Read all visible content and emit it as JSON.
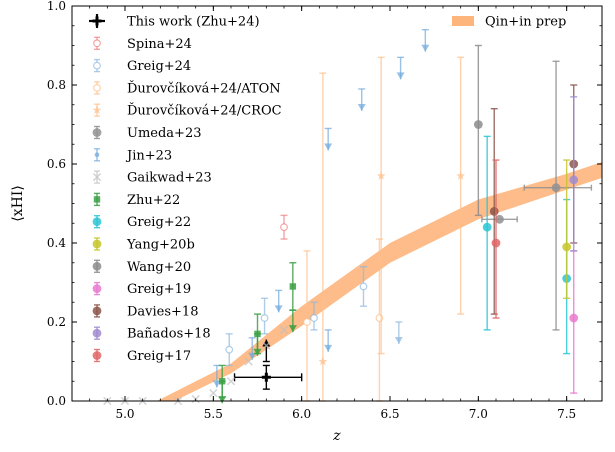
{
  "chart_data": {
    "type": "scatter",
    "xlabel": "z",
    "ylabel": "⟨xHI⟩",
    "xlim": [
      4.7,
      7.7
    ],
    "ylim": [
      0.0,
      1.0
    ],
    "x_ticks": [
      "5.0",
      "5.5",
      "6.0",
      "6.5",
      "7.0",
      "7.5"
    ],
    "y_ticks": [
      "0.0",
      "0.2",
      "0.4",
      "0.6",
      "0.8",
      "1.0"
    ],
    "grid": false,
    "legend": [
      "upper-left",
      "upper-right"
    ],
    "band": {
      "name": "Qin+in prep",
      "color": "#fdb57c",
      "lower": [
        [
          5.28,
          0.0
        ],
        [
          5.6,
          0.07
        ],
        [
          6.0,
          0.19
        ],
        [
          6.5,
          0.35
        ],
        [
          7.0,
          0.46
        ],
        [
          7.5,
          0.535
        ],
        [
          7.7,
          0.565
        ]
      ],
      "upper": [
        [
          5.18,
          0.0
        ],
        [
          5.6,
          0.095
        ],
        [
          6.0,
          0.24
        ],
        [
          6.5,
          0.4
        ],
        [
          7.0,
          0.51
        ],
        [
          7.5,
          0.575
        ],
        [
          7.7,
          0.605
        ]
      ]
    },
    "series": [
      {
        "name": "This work (Zhu+24)",
        "color": "#000000",
        "marker": "plus",
        "points": [
          {
            "x": 5.8,
            "y": 0.06,
            "yerr": [
              0.03,
              0.03
            ],
            "xerr": [
              0.18,
              0.2
            ]
          }
        ],
        "limits": [
          {
            "x": 5.8,
            "y": 0.1,
            "dir": "up"
          }
        ]
      },
      {
        "name": "Spina+24",
        "color": "#f08080",
        "marker": "circle-open",
        "points": [
          {
            "x": 5.9,
            "y": 0.44,
            "yerr": [
              0.03,
              0.03
            ]
          }
        ]
      },
      {
        "name": "Greig+24",
        "color": "#8fb8de",
        "marker": "circle-open",
        "points": [
          {
            "x": 5.59,
            "y": 0.13,
            "yerr": [
              0.04,
              0.04
            ]
          },
          {
            "x": 5.79,
            "y": 0.21,
            "yerr": [
              0.04,
              0.05
            ]
          },
          {
            "x": 6.07,
            "y": 0.21,
            "yerr": [
              0.03,
              0.04
            ]
          },
          {
            "x": 6.35,
            "y": 0.29,
            "yerr": [
              0.05,
              0.05
            ]
          }
        ],
        "limits": [
          {
            "x": 6.55,
            "y": 0.2,
            "dir": "down"
          }
        ]
      },
      {
        "name": "Ďurovčíková+24/ATON",
        "color": "#fdbf8a",
        "marker": "circle-open",
        "points": [
          {
            "x": 6.03,
            "y": 0.2,
            "yerr": [
              0.2,
              0.18
            ]
          },
          {
            "x": 6.44,
            "y": 0.21,
            "yerr": [
              0.21,
              0.2
            ]
          }
        ]
      },
      {
        "name": "Ďurovčíková+24/CROC",
        "color": "#fdbf8a",
        "marker": "star",
        "points": [
          {
            "x": 6.12,
            "y": 0.1,
            "yerr": [
              0.1,
              0.73
            ]
          },
          {
            "x": 6.45,
            "y": 0.57,
            "yerr": [
              0.45,
              0.3
            ]
          },
          {
            "x": 6.9,
            "y": 0.57,
            "yerr": [
              0.35,
              0.3
            ]
          }
        ]
      },
      {
        "name": "Umeda+23",
        "color": "#909090",
        "marker": "circle",
        "points": [
          {
            "x": 7.12,
            "y": 0.46,
            "xerr": [
              0.1,
              0.1
            ],
            "yerr": [
              0.0,
              0.0
            ]
          },
          {
            "x": 7.44,
            "y": 0.54,
            "xerr": [
              0.18,
              0.2
            ],
            "yerr": [
              0.36,
              0.32
            ]
          }
        ]
      },
      {
        "name": "Jin+23",
        "color": "#6fa8dc",
        "marker": "dot",
        "points": [],
        "limits": [
          {
            "x": 5.52,
            "y": 0.09,
            "dir": "down"
          },
          {
            "x": 5.72,
            "y": 0.16,
            "dir": "down"
          },
          {
            "x": 5.87,
            "y": 0.28,
            "dir": "down"
          },
          {
            "x": 6.15,
            "y": 0.18,
            "dir": "down"
          },
          {
            "x": 6.15,
            "y": 0.69,
            "dir": "down"
          },
          {
            "x": 6.34,
            "y": 0.79,
            "dir": "down"
          },
          {
            "x": 6.56,
            "y": 0.87,
            "dir": "down"
          },
          {
            "x": 6.7,
            "y": 0.94,
            "dir": "down"
          }
        ]
      },
      {
        "name": "Gaikwad+23",
        "color": "#c0c0c0",
        "marker": "x",
        "points": [
          {
            "x": 4.9,
            "y": 0.0
          },
          {
            "x": 5.0,
            "y": 0.0
          },
          {
            "x": 5.1,
            "y": 0.0
          },
          {
            "x": 5.3,
            "y": 0.0
          },
          {
            "x": 5.4,
            "y": 0.005
          },
          {
            "x": 5.5,
            "y": 0.02
          },
          {
            "x": 5.6,
            "y": 0.05
          },
          {
            "x": 5.7,
            "y": 0.1
          },
          {
            "x": 5.8,
            "y": 0.14
          },
          {
            "x": 5.9,
            "y": 0.18
          }
        ]
      },
      {
        "name": "Zhu+22",
        "color": "#3aa043",
        "marker": "square",
        "points": [
          {
            "x": 5.55,
            "y": 0.05,
            "yerr": [
              0.04,
              0.04
            ]
          },
          {
            "x": 5.75,
            "y": 0.17,
            "yerr": [
              0.05,
              0.05
            ]
          },
          {
            "x": 5.95,
            "y": 0.29,
            "yerr": [
              0.06,
              0.06
            ]
          }
        ],
        "limits": [
          {
            "x": 5.55,
            "y": 0.05,
            "dir": "down"
          },
          {
            "x": 5.75,
            "y": 0.17,
            "dir": "down"
          },
          {
            "x": 5.95,
            "y": 0.23,
            "dir": "down"
          }
        ]
      },
      {
        "name": "Greig+22",
        "color": "#2bc4d4",
        "marker": "circle",
        "points": [
          {
            "x": 7.05,
            "y": 0.44,
            "yerr": [
              0.26,
              0.23
            ]
          },
          {
            "x": 7.5,
            "y": 0.31,
            "yerr": [
              0.19,
              0.2
            ]
          }
        ]
      },
      {
        "name": "Yang+20b",
        "color": "#c5c52a",
        "marker": "circle",
        "points": [
          {
            "x": 7.5,
            "y": 0.39,
            "yerr": [
              0.13,
              0.22
            ]
          }
        ]
      },
      {
        "name": "Wang+20",
        "color": "#8c8c8c",
        "marker": "circle",
        "points": [
          {
            "x": 7.0,
            "y": 0.7,
            "yerr": [
              0.23,
              0.2
            ]
          }
        ]
      },
      {
        "name": "Greig+19",
        "color": "#e87ad0",
        "marker": "circle",
        "points": [
          {
            "x": 7.54,
            "y": 0.21,
            "yerr": [
              0.19,
              0.17
            ]
          }
        ]
      },
      {
        "name": "Davies+18",
        "color": "#8c564b",
        "marker": "circle",
        "points": [
          {
            "x": 7.09,
            "y": 0.48,
            "yerr": [
              0.26,
              0.26
            ]
          },
          {
            "x": 7.54,
            "y": 0.6,
            "yerr": [
              0.2,
              0.2
            ]
          }
        ]
      },
      {
        "name": "Bañados+18",
        "color": "#a08cd0",
        "marker": "circle",
        "points": [
          {
            "x": 7.54,
            "y": 0.56,
            "yerr": [
              0.18,
              0.21
            ]
          }
        ]
      },
      {
        "name": "Greig+17",
        "color": "#e06666",
        "marker": "circle",
        "points": [
          {
            "x": 7.1,
            "y": 0.4,
            "yerr": [
              0.19,
              0.21
            ]
          }
        ]
      }
    ],
    "extra_legend": [
      {
        "name": "Qin+in prep",
        "color": "#fdb57c",
        "marker": "band"
      }
    ]
  }
}
